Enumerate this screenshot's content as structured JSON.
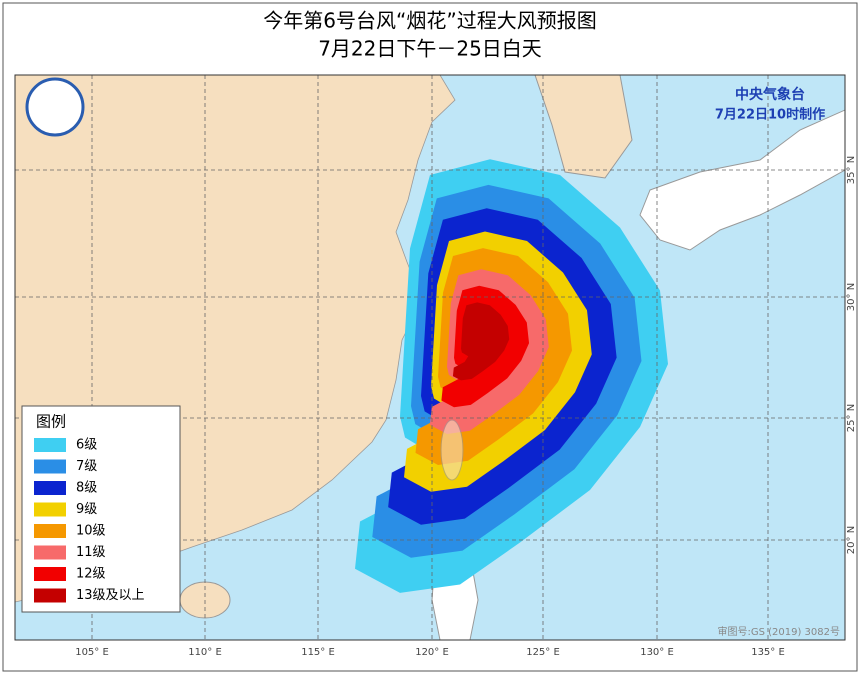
{
  "header": {
    "title": "今年第6号台风“烟花”过程大风预报图",
    "subtitle": "7月22日下午－25日白天"
  },
  "agency": {
    "name": "中央气象台",
    "issued": "7月22日10时制作"
  },
  "legend": {
    "title": "图例",
    "items": [
      {
        "label": "6级",
        "color": "#3fcff2"
      },
      {
        "label": "7级",
        "color": "#2a8ee6"
      },
      {
        "label": "8级",
        "color": "#0b24cf"
      },
      {
        "label": "9级",
        "color": "#f2d000"
      },
      {
        "label": "10级",
        "color": "#f59800"
      },
      {
        "label": "11级",
        "color": "#f76a6a"
      },
      {
        "label": "12级",
        "color": "#f20000"
      },
      {
        "label": "13级及以上",
        "color": "#c40000"
      }
    ]
  },
  "axes": {
    "longitude": [
      "105° E",
      "110° E",
      "115° E",
      "120° E",
      "125° E",
      "130° E",
      "135° E"
    ],
    "latitude": [
      "35° N",
      "30° N",
      "25° N",
      "20° N"
    ]
  },
  "footer": {
    "review": "审图号:GS (2019) 3082号"
  }
}
